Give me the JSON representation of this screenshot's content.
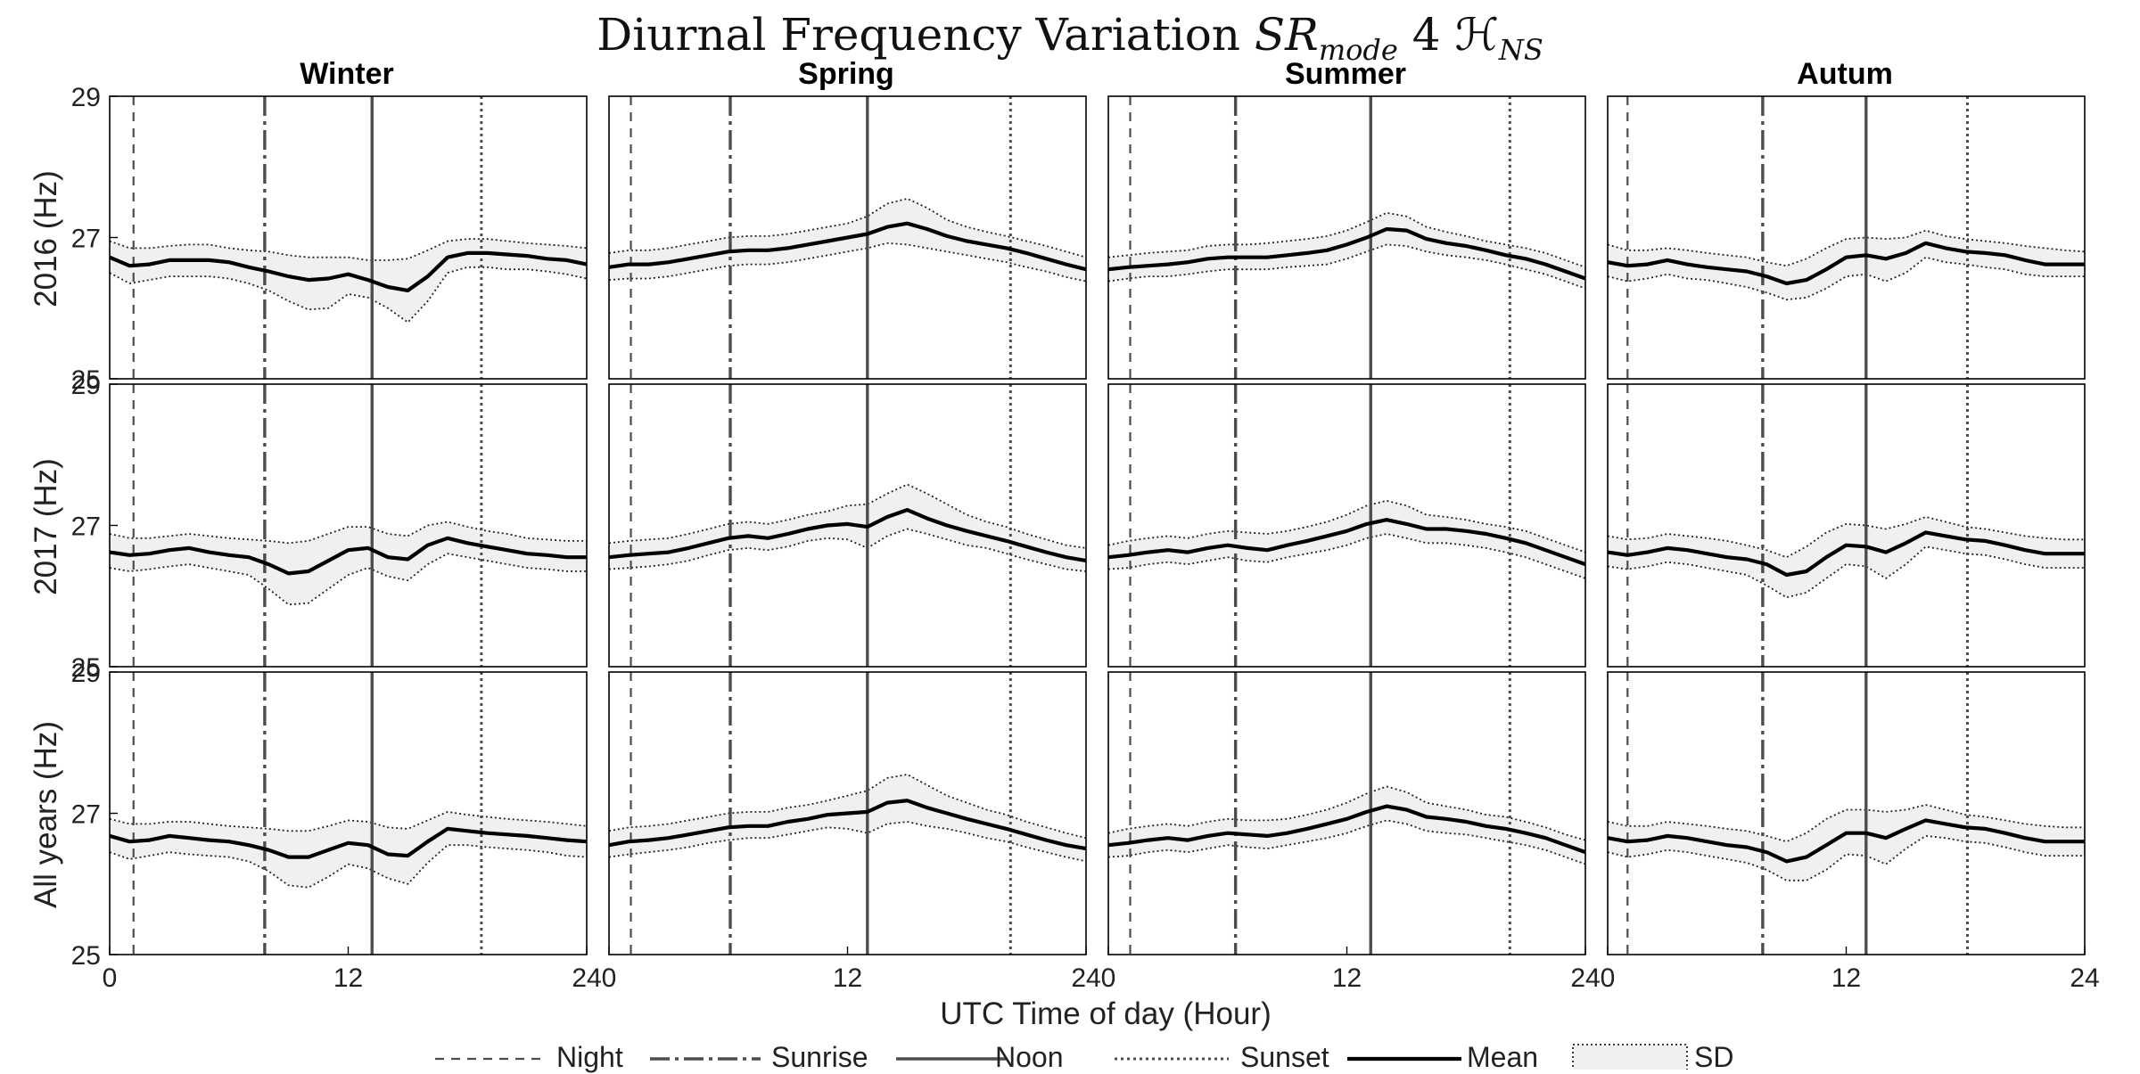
{
  "figure": {
    "title_prefix": "Diurnal Frequency Variation",
    "title_sr": "SR",
    "title_sub": "mode",
    "title_num": "4",
    "title_h": "ℋ",
    "title_ns": "NS",
    "xlabel": "UTC Time of day (Hour)"
  },
  "seasons": [
    "Winter",
    "Spring",
    "Summer",
    "Autum"
  ],
  "rows": [
    "2016 (Hz)",
    "2017 (Hz)",
    "All years (Hz)"
  ],
  "legend": {
    "night": "Night",
    "sunrise": "Sunrise",
    "noon": "Noon",
    "sunset": "Sunset",
    "mean": "Mean",
    "sd": "SD"
  },
  "colors": {
    "mean": "#000000",
    "sd_fill": "#f0f0f0",
    "ref_lines": "#4d4d4d",
    "border": "#000000"
  },
  "chart_data": {
    "type": "line",
    "xlim": [
      0,
      24
    ],
    "ylim": [
      25,
      29
    ],
    "xticks": [
      0,
      12,
      24
    ],
    "yticks": [
      25,
      27,
      29
    ],
    "grid": false,
    "legend_position": "bottom",
    "x": [
      0,
      1,
      2,
      3,
      4,
      5,
      6,
      7,
      8,
      9,
      10,
      11,
      12,
      13,
      14,
      15,
      16,
      17,
      18,
      19,
      20,
      21,
      22,
      23,
      24
    ],
    "markers": {
      "Winter": {
        "night": 1.2,
        "sunrise": 7.8,
        "noon": 13.2,
        "sunset": 18.7
      },
      "Spring": {
        "night": 1.1,
        "sunrise": 6.1,
        "noon": 13.0,
        "sunset": 20.2
      },
      "Summer": {
        "night": 1.1,
        "sunrise": 6.4,
        "noon": 13.2,
        "sunset": 20.2
      },
      "Autum": {
        "night": 1.0,
        "sunrise": 7.8,
        "noon": 13.0,
        "sunset": 18.1
      }
    },
    "panels": [
      {
        "season": "Winter",
        "row": "2016 (Hz)",
        "mean": [
          26.72,
          26.6,
          26.62,
          26.68,
          26.68,
          26.68,
          26.65,
          26.58,
          26.52,
          26.45,
          26.4,
          26.42,
          26.48,
          26.4,
          26.3,
          26.25,
          26.45,
          26.72,
          26.78,
          26.78,
          26.76,
          26.74,
          26.7,
          26.68,
          26.62
        ],
        "upper": [
          26.95,
          26.85,
          26.85,
          26.88,
          26.9,
          26.9,
          26.85,
          26.82,
          26.8,
          26.75,
          26.72,
          26.72,
          26.72,
          26.68,
          26.68,
          26.7,
          26.82,
          26.95,
          26.98,
          26.98,
          26.95,
          26.92,
          26.9,
          26.88,
          26.85
        ],
        "lower": [
          26.5,
          26.35,
          26.4,
          26.45,
          26.45,
          26.45,
          26.42,
          26.35,
          26.25,
          26.1,
          25.98,
          26.0,
          26.2,
          26.15,
          26.0,
          25.8,
          26.1,
          26.5,
          26.58,
          26.58,
          26.55,
          26.55,
          26.52,
          26.48,
          26.42
        ]
      },
      {
        "season": "Spring",
        "row": "2016 (Hz)",
        "mean": [
          26.58,
          26.62,
          26.62,
          26.65,
          26.7,
          26.75,
          26.8,
          26.82,
          26.82,
          26.85,
          26.9,
          26.95,
          27.0,
          27.05,
          27.15,
          27.2,
          27.12,
          27.02,
          26.95,
          26.9,
          26.85,
          26.78,
          26.7,
          26.62,
          26.55
        ],
        "upper": [
          26.78,
          26.82,
          26.82,
          26.85,
          26.9,
          26.95,
          27.0,
          27.02,
          27.02,
          27.05,
          27.1,
          27.15,
          27.2,
          27.3,
          27.48,
          27.55,
          27.42,
          27.25,
          27.15,
          27.08,
          27.02,
          26.95,
          26.88,
          26.8,
          26.72
        ],
        "lower": [
          26.4,
          26.42,
          26.42,
          26.45,
          26.5,
          26.55,
          26.6,
          26.62,
          26.62,
          26.65,
          26.7,
          26.75,
          26.8,
          26.85,
          26.92,
          26.9,
          26.85,
          26.8,
          26.75,
          26.7,
          26.65,
          26.58,
          26.52,
          26.44,
          26.38
        ]
      },
      {
        "season": "Summer",
        "row": "2016 (Hz)",
        "mean": [
          26.55,
          26.58,
          26.6,
          26.62,
          26.65,
          26.7,
          26.72,
          26.72,
          26.72,
          26.75,
          26.78,
          26.82,
          26.9,
          27.0,
          27.12,
          27.1,
          26.98,
          26.92,
          26.88,
          26.82,
          26.75,
          26.7,
          26.62,
          26.52,
          26.42
        ],
        "upper": [
          26.72,
          26.75,
          26.78,
          26.8,
          26.82,
          26.88,
          26.9,
          26.9,
          26.92,
          26.95,
          26.98,
          27.02,
          27.1,
          27.22,
          27.35,
          27.3,
          27.15,
          27.08,
          27.02,
          26.95,
          26.9,
          26.85,
          26.78,
          26.68,
          26.58
        ],
        "lower": [
          26.38,
          26.42,
          26.45,
          26.45,
          26.48,
          26.52,
          26.55,
          26.55,
          26.55,
          26.58,
          26.6,
          26.62,
          26.7,
          26.8,
          26.9,
          26.88,
          26.8,
          26.75,
          26.72,
          26.68,
          26.62,
          26.55,
          26.48,
          26.38,
          26.28
        ]
      },
      {
        "season": "Autum",
        "row": "2016 (Hz)",
        "mean": [
          26.65,
          26.6,
          26.62,
          26.68,
          26.62,
          26.58,
          26.55,
          26.52,
          26.45,
          26.35,
          26.4,
          26.55,
          26.72,
          26.75,
          26.7,
          26.78,
          26.92,
          26.85,
          26.8,
          26.78,
          26.75,
          26.68,
          26.62,
          26.62,
          26.62
        ],
        "upper": [
          26.9,
          26.82,
          26.82,
          26.85,
          26.82,
          26.78,
          26.75,
          26.72,
          26.65,
          26.6,
          26.7,
          26.85,
          26.98,
          27.0,
          26.98,
          27.0,
          27.1,
          27.02,
          26.98,
          26.95,
          26.92,
          26.88,
          26.85,
          26.82,
          26.8
        ],
        "lower": [
          26.45,
          26.38,
          26.42,
          26.48,
          26.42,
          26.4,
          26.35,
          26.3,
          26.22,
          26.12,
          26.15,
          26.28,
          26.45,
          26.48,
          26.38,
          26.5,
          26.72,
          26.65,
          26.62,
          26.58,
          26.55,
          26.48,
          26.45,
          26.45,
          26.45
        ]
      },
      {
        "season": "Winter",
        "row": "2017 (Hz)",
        "mean": [
          26.62,
          26.58,
          26.6,
          26.65,
          26.68,
          26.62,
          26.58,
          26.55,
          26.45,
          26.32,
          26.35,
          26.5,
          26.65,
          26.68,
          26.55,
          26.52,
          26.72,
          26.82,
          26.75,
          26.7,
          26.65,
          26.6,
          26.58,
          26.55,
          26.55
        ],
        "upper": [
          26.88,
          26.82,
          26.82,
          26.85,
          26.88,
          26.85,
          26.82,
          26.8,
          26.78,
          26.75,
          26.78,
          26.88,
          26.98,
          26.98,
          26.88,
          26.85,
          27.0,
          27.05,
          26.98,
          26.92,
          26.88,
          26.82,
          26.8,
          26.78,
          26.78
        ],
        "lower": [
          26.4,
          26.35,
          26.38,
          26.42,
          26.45,
          26.4,
          26.35,
          26.3,
          26.1,
          25.88,
          25.9,
          26.1,
          26.3,
          26.4,
          26.28,
          26.22,
          26.45,
          26.6,
          26.55,
          26.5,
          26.45,
          26.4,
          26.38,
          26.35,
          26.35
        ]
      },
      {
        "season": "Spring",
        "row": "2017 (Hz)",
        "mean": [
          26.55,
          26.58,
          26.6,
          26.62,
          26.68,
          26.75,
          26.82,
          26.85,
          26.82,
          26.88,
          26.95,
          27.0,
          27.02,
          26.98,
          27.12,
          27.22,
          27.1,
          27.0,
          26.92,
          26.85,
          26.78,
          26.7,
          26.62,
          26.55,
          26.5
        ],
        "upper": [
          26.75,
          26.78,
          26.8,
          26.82,
          26.88,
          26.95,
          27.02,
          27.05,
          27.02,
          27.08,
          27.15,
          27.2,
          27.28,
          27.3,
          27.45,
          27.58,
          27.45,
          27.3,
          27.15,
          27.05,
          26.98,
          26.88,
          26.8,
          26.72,
          26.68
        ],
        "lower": [
          26.38,
          26.4,
          26.42,
          26.45,
          26.5,
          26.58,
          26.65,
          26.68,
          26.65,
          26.7,
          26.78,
          26.82,
          26.8,
          26.68,
          26.85,
          26.95,
          26.88,
          26.8,
          26.72,
          26.68,
          26.6,
          26.52,
          26.45,
          26.38,
          26.35
        ]
      },
      {
        "season": "Summer",
        "row": "2017 (Hz)",
        "mean": [
          26.55,
          26.58,
          26.62,
          26.65,
          26.62,
          26.68,
          26.72,
          26.68,
          26.65,
          26.72,
          26.78,
          26.85,
          26.92,
          27.02,
          27.08,
          27.02,
          26.95,
          26.95,
          26.92,
          26.88,
          26.82,
          26.75,
          26.65,
          26.55,
          26.45
        ],
        "upper": [
          26.72,
          26.78,
          26.82,
          26.85,
          26.82,
          26.88,
          26.92,
          26.9,
          26.88,
          26.92,
          26.98,
          27.05,
          27.15,
          27.28,
          27.35,
          27.28,
          27.15,
          27.12,
          27.08,
          27.02,
          26.98,
          26.92,
          26.82,
          26.72,
          26.62
        ],
        "lower": [
          26.38,
          26.4,
          26.45,
          26.48,
          26.45,
          26.5,
          26.55,
          26.5,
          26.48,
          26.55,
          26.6,
          26.65,
          26.72,
          26.82,
          26.88,
          26.82,
          26.75,
          26.75,
          26.72,
          26.68,
          26.62,
          26.55,
          26.45,
          26.35,
          26.25
        ]
      },
      {
        "season": "Autum",
        "row": "2017 (Hz)",
        "mean": [
          26.62,
          26.58,
          26.62,
          26.68,
          26.65,
          26.6,
          26.55,
          26.52,
          26.45,
          26.3,
          26.35,
          26.55,
          26.72,
          26.7,
          26.62,
          26.75,
          26.9,
          26.85,
          26.8,
          26.78,
          26.72,
          26.65,
          26.6,
          26.6,
          26.6
        ],
        "upper": [
          26.85,
          26.8,
          26.82,
          26.88,
          26.85,
          26.82,
          26.78,
          26.72,
          26.65,
          26.55,
          26.7,
          26.9,
          27.02,
          27.0,
          26.95,
          27.02,
          27.12,
          27.05,
          26.98,
          26.95,
          26.9,
          26.85,
          26.82,
          26.8,
          26.8
        ],
        "lower": [
          26.42,
          26.38,
          26.42,
          26.48,
          26.45,
          26.4,
          26.35,
          26.3,
          26.15,
          25.98,
          26.05,
          26.25,
          26.45,
          26.42,
          26.25,
          26.45,
          26.7,
          26.65,
          26.6,
          26.58,
          26.52,
          26.45,
          26.4,
          26.4,
          26.4
        ]
      },
      {
        "season": "Winter",
        "row": "All years (Hz)",
        "mean": [
          26.68,
          26.6,
          26.62,
          26.68,
          26.65,
          26.62,
          26.6,
          26.55,
          26.48,
          26.38,
          26.38,
          26.48,
          26.58,
          26.55,
          26.42,
          26.4,
          26.6,
          26.78,
          26.75,
          26.72,
          26.7,
          26.68,
          26.65,
          26.62,
          26.6
        ],
        "upper": [
          26.92,
          26.85,
          26.85,
          26.88,
          26.88,
          26.85,
          26.82,
          26.8,
          26.78,
          26.75,
          26.75,
          26.82,
          26.9,
          26.88,
          26.8,
          26.78,
          26.9,
          27.02,
          26.98,
          26.95,
          26.92,
          26.9,
          26.88,
          26.85,
          26.82
        ],
        "lower": [
          26.45,
          26.35,
          26.4,
          26.45,
          26.42,
          26.4,
          26.38,
          26.32,
          26.18,
          25.98,
          25.95,
          26.1,
          26.28,
          26.22,
          26.08,
          26.0,
          26.3,
          26.55,
          26.55,
          26.52,
          26.5,
          26.48,
          26.45,
          26.4,
          26.38
        ]
      },
      {
        "season": "Spring",
        "row": "All years (Hz)",
        "mean": [
          26.55,
          26.6,
          26.62,
          26.65,
          26.7,
          26.75,
          26.8,
          26.82,
          26.82,
          26.88,
          26.92,
          26.98,
          27.0,
          27.02,
          27.15,
          27.18,
          27.08,
          27.0,
          26.92,
          26.85,
          26.78,
          26.7,
          26.62,
          26.55,
          26.5
        ],
        "upper": [
          26.75,
          26.8,
          26.82,
          26.85,
          26.9,
          26.95,
          27.0,
          27.02,
          27.02,
          27.08,
          27.12,
          27.18,
          27.25,
          27.32,
          27.5,
          27.55,
          27.4,
          27.25,
          27.15,
          27.05,
          26.98,
          26.88,
          26.8,
          26.72,
          26.65
        ],
        "lower": [
          26.38,
          26.42,
          26.45,
          26.48,
          26.52,
          26.58,
          26.62,
          26.65,
          26.65,
          26.7,
          26.75,
          26.8,
          26.78,
          26.72,
          26.85,
          26.88,
          26.82,
          26.78,
          26.72,
          26.65,
          26.6,
          26.52,
          26.45,
          26.38,
          26.32
        ]
      },
      {
        "season": "Summer",
        "row": "All years (Hz)",
        "mean": [
          26.55,
          26.58,
          26.62,
          26.65,
          26.62,
          26.68,
          26.72,
          26.7,
          26.68,
          26.72,
          26.78,
          26.85,
          26.92,
          27.02,
          27.1,
          27.05,
          26.95,
          26.92,
          26.88,
          26.82,
          26.78,
          26.72,
          26.65,
          26.55,
          26.45
        ],
        "upper": [
          26.72,
          26.78,
          26.82,
          26.85,
          26.82,
          26.88,
          26.92,
          26.9,
          26.9,
          26.92,
          26.98,
          27.05,
          27.15,
          27.28,
          27.38,
          27.3,
          27.15,
          27.1,
          27.05,
          26.98,
          26.95,
          26.88,
          26.8,
          26.7,
          26.62
        ],
        "lower": [
          26.38,
          26.4,
          26.45,
          26.48,
          26.45,
          26.5,
          26.55,
          26.52,
          26.5,
          26.55,
          26.6,
          26.65,
          26.72,
          26.82,
          26.9,
          26.85,
          26.75,
          26.72,
          26.7,
          26.65,
          26.6,
          26.55,
          26.48,
          26.38,
          26.28
        ]
      },
      {
        "season": "Autum",
        "row": "All years (Hz)",
        "mean": [
          26.65,
          26.6,
          26.62,
          26.68,
          26.65,
          26.6,
          26.55,
          26.52,
          26.45,
          26.32,
          26.38,
          26.55,
          26.72,
          26.72,
          26.65,
          26.78,
          26.9,
          26.85,
          26.8,
          26.78,
          26.72,
          26.65,
          26.6,
          26.6,
          26.6
        ],
        "upper": [
          26.88,
          26.82,
          26.82,
          26.88,
          26.85,
          26.82,
          26.78,
          26.75,
          26.68,
          26.6,
          26.72,
          26.92,
          27.05,
          27.05,
          27.02,
          27.05,
          27.12,
          27.05,
          26.98,
          26.95,
          26.9,
          26.85,
          26.82,
          26.8,
          26.8
        ],
        "lower": [
          26.45,
          26.38,
          26.42,
          26.48,
          26.45,
          26.4,
          26.35,
          26.3,
          26.2,
          26.05,
          26.05,
          26.2,
          26.42,
          26.4,
          26.28,
          26.5,
          26.68,
          26.65,
          26.6,
          26.58,
          26.52,
          26.45,
          26.4,
          26.4,
          26.4
        ]
      }
    ]
  }
}
